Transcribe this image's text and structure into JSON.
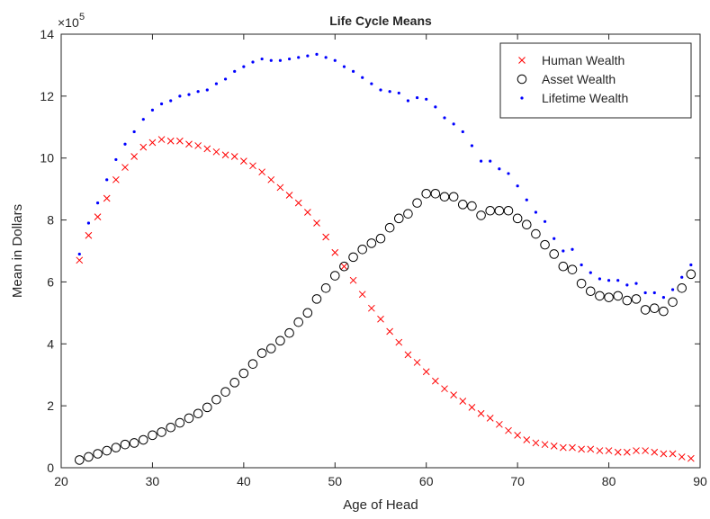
{
  "chart_data": {
    "type": "scatter",
    "title": "Life Cycle Means",
    "x_label": "Age of Head",
    "y_label": "Mean in Dollars",
    "y_multiplier": "×10",
    "y_multiplier_exponent": "5",
    "x": [
      22,
      23,
      24,
      25,
      26,
      27,
      28,
      29,
      30,
      31,
      32,
      33,
      34,
      35,
      36,
      37,
      38,
      39,
      40,
      41,
      42,
      43,
      44,
      45,
      46,
      47,
      48,
      49,
      50,
      51,
      52,
      53,
      54,
      55,
      56,
      57,
      58,
      59,
      60,
      61,
      62,
      63,
      64,
      65,
      66,
      67,
      68,
      69,
      70,
      71,
      72,
      73,
      74,
      75,
      76,
      77,
      78,
      79,
      80,
      81,
      82,
      83,
      84,
      85,
      86,
      87,
      88,
      89
    ],
    "series": [
      {
        "name": "Human Wealth",
        "color": "#ff0000",
        "marker": "x",
        "values": [
          6.7,
          7.5,
          8.1,
          8.7,
          9.3,
          9.7,
          10.05,
          10.35,
          10.5,
          10.6,
          10.55,
          10.55,
          10.45,
          10.4,
          10.3,
          10.2,
          10.1,
          10.05,
          9.9,
          9.75,
          9.55,
          9.3,
          9.05,
          8.8,
          8.55,
          8.25,
          7.9,
          7.45,
          6.95,
          6.5,
          6.05,
          5.6,
          5.15,
          4.8,
          4.4,
          4.05,
          3.65,
          3.4,
          3.1,
          2.8,
          2.55,
          2.35,
          2.15,
          1.95,
          1.75,
          1.6,
          1.4,
          1.2,
          1.05,
          0.9,
          0.8,
          0.75,
          0.7,
          0.65,
          0.65,
          0.6,
          0.6,
          0.55,
          0.55,
          0.5,
          0.5,
          0.55,
          0.55,
          0.5,
          0.45,
          0.45,
          0.35,
          0.3
        ]
      },
      {
        "name": "Asset Wealth",
        "color": "#000000",
        "marker": "o",
        "values": [
          0.25,
          0.35,
          0.45,
          0.55,
          0.65,
          0.75,
          0.8,
          0.9,
          1.05,
          1.15,
          1.3,
          1.45,
          1.6,
          1.75,
          1.95,
          2.2,
          2.45,
          2.75,
          3.05,
          3.35,
          3.7,
          3.85,
          4.1,
          4.35,
          4.7,
          5.0,
          5.45,
          5.8,
          6.2,
          6.5,
          6.8,
          7.05,
          7.25,
          7.4,
          7.75,
          8.05,
          8.2,
          8.55,
          8.85,
          8.85,
          8.75,
          8.75,
          8.5,
          8.45,
          8.15,
          8.3,
          8.3,
          8.3,
          8.05,
          7.85,
          7.55,
          7.2,
          6.9,
          6.5,
          6.4,
          5.95,
          5.7,
          5.55,
          5.5,
          5.55,
          5.4,
          5.45,
          5.1,
          5.15,
          5.05,
          5.35,
          5.8,
          6.25
        ]
      },
      {
        "name": "Lifetime Wealth",
        "color": "#0000ff",
        "marker": ".",
        "values": [
          6.9,
          7.9,
          8.55,
          9.3,
          9.95,
          10.45,
          10.85,
          11.25,
          11.55,
          11.75,
          11.85,
          12.0,
          12.05,
          12.15,
          12.2,
          12.4,
          12.55,
          12.8,
          12.95,
          13.1,
          13.2,
          13.15,
          13.15,
          13.2,
          13.25,
          13.3,
          13.35,
          13.25,
          13.15,
          12.95,
          12.8,
          12.6,
          12.4,
          12.2,
          12.15,
          12.1,
          11.85,
          11.95,
          11.9,
          11.65,
          11.3,
          11.1,
          10.85,
          10.4,
          9.9,
          9.9,
          9.65,
          9.5,
          9.1,
          8.65,
          8.25,
          7.95,
          7.4,
          7.0,
          7.05,
          6.55,
          6.3,
          6.1,
          6.05,
          6.05,
          5.9,
          5.95,
          5.65,
          5.65,
          5.5,
          5.75,
          6.15,
          6.55
        ]
      }
    ],
    "xlim": [
      20,
      90
    ],
    "xticks": [
      20,
      30,
      40,
      50,
      60,
      70,
      80,
      90
    ],
    "ylim": [
      0,
      14
    ],
    "yticks": [
      0,
      2,
      4,
      6,
      8,
      10,
      12,
      14
    ],
    "legend": "top-right"
  }
}
